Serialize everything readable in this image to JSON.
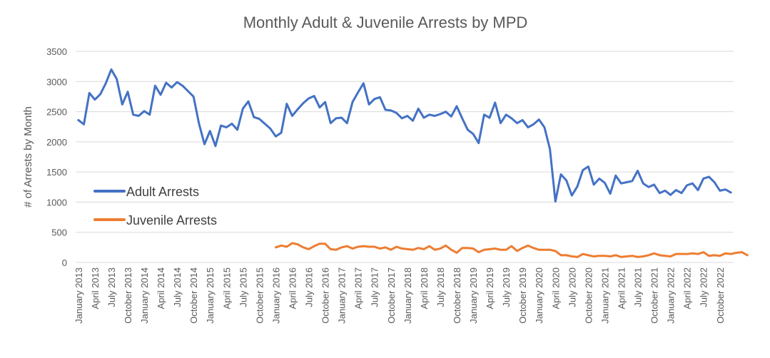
{
  "chart_data": {
    "type": "line",
    "title": "Monthly Adult & Juvenile Arrests by MPD",
    "xlabel": "",
    "ylabel": "# of Arrests by Month",
    "ylim": [
      0,
      3500
    ],
    "yticks": [
      0,
      500,
      1000,
      1500,
      2000,
      2500,
      3000,
      3500
    ],
    "grid": true,
    "legend_position": "center-left",
    "x_tick_labels": [
      "January 2013",
      "April 2013",
      "July 2013",
      "October 2013",
      "January 2014",
      "April 2014",
      "July 2014",
      "October 2014",
      "January 2015",
      "April 2015",
      "July 2015",
      "October 2015",
      "January 2016",
      "April 2016",
      "July 2016",
      "October 2016",
      "January 2017",
      "April 2017",
      "July 2017",
      "October 2017",
      "January 2018",
      "April 2018",
      "July 2018",
      "October 2018",
      "January 2019",
      "April 2019",
      "July 2019",
      "October 2019",
      "January 2020",
      "April 2020",
      "July 2020",
      "October 2020",
      "January 2021",
      "April 2021",
      "July 2021",
      "October 2021",
      "January 2022",
      "April 2022",
      "July 2022",
      "October 2022"
    ],
    "series": [
      {
        "name": "Adult Arrests",
        "color": "#4472C4",
        "start": "January 2013",
        "values": [
          2360,
          2290,
          2810,
          2700,
          2790,
          2970,
          3200,
          3040,
          2620,
          2830,
          2450,
          2430,
          2510,
          2450,
          2930,
          2780,
          2980,
          2900,
          2990,
          2930,
          2840,
          2750,
          2300,
          1960,
          2180,
          1930,
          2270,
          2240,
          2300,
          2200,
          2550,
          2670,
          2410,
          2380,
          2300,
          2220,
          2090,
          2150,
          2630,
          2430,
          2540,
          2640,
          2720,
          2760,
          2570,
          2660,
          2310,
          2390,
          2400,
          2310,
          2660,
          2820,
          2970,
          2620,
          2710,
          2740,
          2530,
          2520,
          2480,
          2390,
          2430,
          2350,
          2550,
          2400,
          2450,
          2430,
          2460,
          2500,
          2420,
          2590,
          2390,
          2200,
          2130,
          1980,
          2450,
          2400,
          2650,
          2310,
          2450,
          2390,
          2310,
          2360,
          2240,
          2290,
          2370,
          2240,
          1880,
          1010,
          1460,
          1360,
          1110,
          1260,
          1530,
          1590,
          1290,
          1390,
          1320,
          1140,
          1440,
          1310,
          1330,
          1350,
          1520,
          1310,
          1250,
          1290,
          1150,
          1190,
          1120,
          1200,
          1150,
          1280,
          1310,
          1200,
          1390,
          1420,
          1330,
          1190,
          1210,
          1160
        ]
      },
      {
        "name": "Juvenile Arrests",
        "color": "#ED7D31",
        "start": "January 2016",
        "values": [
          250,
          280,
          260,
          320,
          300,
          250,
          220,
          270,
          310,
          310,
          220,
          210,
          250,
          270,
          230,
          260,
          270,
          260,
          260,
          230,
          250,
          210,
          260,
          230,
          220,
          210,
          240,
          220,
          270,
          210,
          230,
          280,
          210,
          160,
          240,
          240,
          230,
          170,
          210,
          220,
          230,
          210,
          210,
          270,
          190,
          240,
          280,
          240,
          210,
          210,
          210,
          190,
          120,
          120,
          100,
          90,
          140,
          120,
          100,
          110,
          110,
          100,
          120,
          90,
          100,
          110,
          90,
          100,
          120,
          150,
          120,
          110,
          100,
          140,
          140,
          140,
          150,
          140,
          170,
          110,
          120,
          110,
          150,
          140,
          160,
          170,
          120
        ]
      }
    ]
  }
}
